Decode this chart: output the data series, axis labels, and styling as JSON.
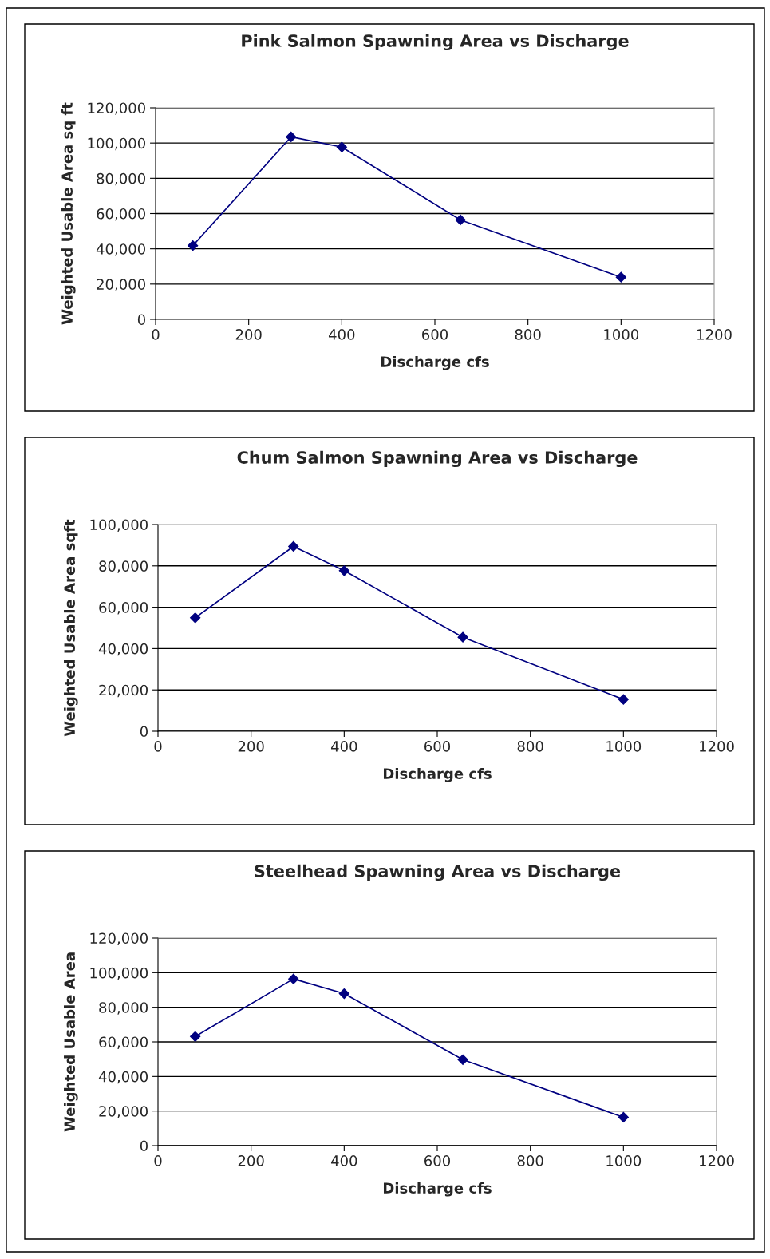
{
  "chart_data": [
    {
      "type": "line",
      "title": "Pink Salmon Spawning Area vs Discharge",
      "xlabel": "Discharge cfs",
      "ylabel": "Weighted Usable Area sq ft",
      "x": [
        80,
        291,
        400,
        655,
        1000
      ],
      "series": [
        {
          "color": "#000080",
          "values": [
            41800,
            103500,
            97700,
            56400,
            23900
          ]
        }
      ],
      "xlim": [
        0,
        1200
      ],
      "xticks": [
        0,
        200,
        400,
        600,
        800,
        1000,
        1200
      ],
      "ylim": [
        0,
        120000
      ],
      "yticks": [
        {
          "value": 0,
          "label": "0"
        },
        {
          "value": 20000,
          "label": "20,000"
        },
        {
          "value": 40000,
          "label": "40,000"
        },
        {
          "value": 60000,
          "label": "60,000"
        },
        {
          "value": 80000,
          "label": "80,000"
        },
        {
          "value": 100000,
          "label": "100,000"
        },
        {
          "value": 120000,
          "label": "120,000"
        }
      ],
      "grid": "y",
      "marker": "diamond",
      "line_style": "solid",
      "legend": false
    },
    {
      "type": "line",
      "title": "Chum Salmon Spawning Area vs Discharge",
      "xlabel": "Discharge cfs",
      "ylabel": "Weighted Usable Area sqft",
      "x": [
        80,
        291,
        400,
        655,
        1000
      ],
      "series": [
        {
          "color": "#000080",
          "values": [
            54900,
            89400,
            77700,
            45500,
            15400
          ]
        }
      ],
      "xlim": [
        0,
        1200
      ],
      "xticks": [
        0,
        200,
        400,
        600,
        800,
        1000,
        1200
      ],
      "ylim": [
        0,
        100000
      ],
      "yticks": [
        {
          "value": 0,
          "label": "0"
        },
        {
          "value": 20000,
          "label": "20,000"
        },
        {
          "value": 40000,
          "label": "40,000"
        },
        {
          "value": 60000,
          "label": "60,000"
        },
        {
          "value": 80000,
          "label": "80,000"
        },
        {
          "value": 100000,
          "label": "100,000"
        }
      ],
      "grid": "y",
      "marker": "diamond",
      "line_style": "solid",
      "legend": false
    },
    {
      "type": "line",
      "title": "Steelhead Spawning Area vs Discharge",
      "xlabel": "Discharge cfs",
      "ylabel": "Weighted Usable Area",
      "x": [
        80,
        291,
        400,
        655,
        1000
      ],
      "series": [
        {
          "color": "#000080",
          "values": [
            63100,
            96400,
            87900,
            49700,
            16400
          ]
        }
      ],
      "xlim": [
        0,
        1200
      ],
      "xticks": [
        0,
        200,
        400,
        600,
        800,
        1000,
        1200
      ],
      "ylim": [
        0,
        120000
      ],
      "yticks": [
        {
          "value": 0,
          "label": "0"
        },
        {
          "value": 20000,
          "label": "20,000"
        },
        {
          "value": 40000,
          "label": "40,000"
        },
        {
          "value": 60000,
          "label": "60,000"
        },
        {
          "value": 80000,
          "label": "80,000"
        },
        {
          "value": 100000,
          "label": "100,000"
        },
        {
          "value": 120000,
          "label": "120,000"
        }
      ],
      "grid": "y",
      "marker": "diamond",
      "line_style": "solid",
      "legend": false
    }
  ]
}
